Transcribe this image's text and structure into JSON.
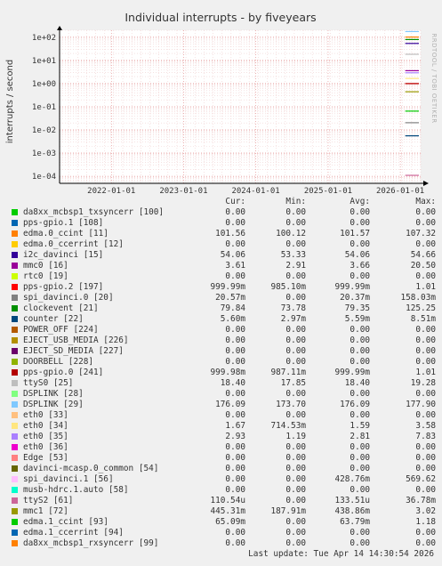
{
  "title": "Individual interrupts - by fiveyears",
  "ylabel": "interrupts / second",
  "side_text": "RRDTOOL / TOBI OETIKER",
  "columns": {
    "cur": "Cur:",
    "min": "Min:",
    "avg": "Avg:",
    "max": "Max:"
  },
  "footer": "Last update: Tue Apr 14 14:30:54 2026",
  "chart_data": {
    "type": "line",
    "title": "Individual interrupts - by fiveyears",
    "ylabel": "interrupts / second",
    "yscale": "log",
    "ylim": [
      5e-05,
      200
    ],
    "y_ticks": [
      {
        "v": 100,
        "label": "1e+02"
      },
      {
        "v": 10,
        "label": "1e+01"
      },
      {
        "v": 1,
        "label": "1e+00"
      },
      {
        "v": 0.1,
        "label": "1e-01"
      },
      {
        "v": 0.01,
        "label": "1e-02"
      },
      {
        "v": 0.001,
        "label": "1e-03"
      },
      {
        "v": 0.0001,
        "label": "1e-04"
      }
    ],
    "x_ticks": [
      "2022-01-01",
      "2023-01-01",
      "2024-01-01",
      "2025-01-01",
      "2026-01-01"
    ],
    "xlim": [
      "2021-04-14",
      "2026-04-14"
    ],
    "grid": true,
    "data_start": "2026-01-26",
    "series": [
      {
        "name": "da8xx_mcbsp1_txsyncerr [100]",
        "color": "#00cc00",
        "cur": "0.00",
        "min": "0.00",
        "avg": "0.00",
        "max": "0.00"
      },
      {
        "name": "pps-gpio.1 [108]",
        "color": "#0066b3",
        "cur": "0.00",
        "min": "0.00",
        "avg": "0.00",
        "max": "0.00"
      },
      {
        "name": "edma.0_ccint [11]",
        "color": "#ff8000",
        "cur": "101.56",
        "min": "100.12",
        "avg": "101.57",
        "max": "107.32"
      },
      {
        "name": "edma.0_ccerrint [12]",
        "color": "#ffcc00",
        "cur": "0.00",
        "min": "0.00",
        "avg": "0.00",
        "max": "0.00"
      },
      {
        "name": "i2c_davinci [15]",
        "color": "#330099",
        "cur": "54.06",
        "min": "53.33",
        "avg": "54.06",
        "max": "54.66"
      },
      {
        "name": "mmc0 [16]",
        "color": "#990099",
        "cur": "3.61",
        "min": "2.91",
        "avg": "3.66",
        "max": "20.50"
      },
      {
        "name": "rtc0 [19]",
        "color": "#ccff00",
        "cur": "0.00",
        "min": "0.00",
        "avg": "0.00",
        "max": "0.00"
      },
      {
        "name": "pps-gpio.2 [197]",
        "color": "#ff0000",
        "cur": "999.99m",
        "min": "985.10m",
        "avg": "999.99m",
        "max": "1.01"
      },
      {
        "name": "spi_davinci.0 [20]",
        "color": "#808080",
        "cur": "20.57m",
        "min": "0.00",
        "avg": "20.37m",
        "max": "158.03m"
      },
      {
        "name": "clockevent [21]",
        "color": "#008f00",
        "cur": "79.84",
        "min": "73.78",
        "avg": "79.35",
        "max": "125.25"
      },
      {
        "name": "counter [22]",
        "color": "#00487d",
        "cur": "5.60m",
        "min": "2.97m",
        "avg": "5.59m",
        "max": "8.51m"
      },
      {
        "name": "POWER_OFF [224]",
        "color": "#b35a00",
        "cur": "0.00",
        "min": "0.00",
        "avg": "0.00",
        "max": "0.00"
      },
      {
        "name": "EJECT_USB_MEDIA [226]",
        "color": "#b38f00",
        "cur": "0.00",
        "min": "0.00",
        "avg": "0.00",
        "max": "0.00"
      },
      {
        "name": "EJECT_SD_MEDIA [227]",
        "color": "#6b006b",
        "cur": "0.00",
        "min": "0.00",
        "avg": "0.00",
        "max": "0.00"
      },
      {
        "name": "DOORBELL [228]",
        "color": "#8fb300",
        "cur": "0.00",
        "min": "0.00",
        "avg": "0.00",
        "max": "0.00"
      },
      {
        "name": "pps-gpio.0 [241]",
        "color": "#b30000",
        "cur": "999.98m",
        "min": "987.11m",
        "avg": "999.99m",
        "max": "1.01"
      },
      {
        "name": "ttyS0 [25]",
        "color": "#bebebe",
        "cur": "18.40",
        "min": "17.85",
        "avg": "18.40",
        "max": "19.28"
      },
      {
        "name": "DSPLINK [28]",
        "color": "#80ff80",
        "cur": "0.00",
        "min": "0.00",
        "avg": "0.00",
        "max": "0.00"
      },
      {
        "name": "DSPLINK [29]",
        "color": "#80c9ff",
        "cur": "176.09",
        "min": "173.70",
        "avg": "176.09",
        "max": "177.90"
      },
      {
        "name": "eth0 [33]",
        "color": "#ffc080",
        "cur": "0.00",
        "min": "0.00",
        "avg": "0.00",
        "max": "0.00"
      },
      {
        "name": "eth0 [34]",
        "color": "#ffe680",
        "cur": "1.67",
        "min": "714.53m",
        "avg": "1.59",
        "max": "3.58"
      },
      {
        "name": "eth0 [35]",
        "color": "#aa80ff",
        "cur": "2.93",
        "min": "1.19",
        "avg": "2.81",
        "max": "7.83"
      },
      {
        "name": "eth0 [36]",
        "color": "#ee00cc",
        "cur": "0.00",
        "min": "0.00",
        "avg": "0.00",
        "max": "0.00"
      },
      {
        "name": "Edge [53]",
        "color": "#ff8080",
        "cur": "0.00",
        "min": "0.00",
        "avg": "0.00",
        "max": "0.00"
      },
      {
        "name": "davinci-mcasp.0_common [54]",
        "color": "#666600",
        "cur": "0.00",
        "min": "0.00",
        "avg": "0.00",
        "max": "0.00"
      },
      {
        "name": "spi_davinci.1 [56]",
        "color": "#ffbfff",
        "cur": "0.00",
        "min": "0.00",
        "avg": "428.76m",
        "max": "569.62"
      },
      {
        "name": "musb-hdrc.1.auto [58]",
        "color": "#00ffcc",
        "cur": "0.00",
        "min": "0.00",
        "avg": "0.00",
        "max": "0.00"
      },
      {
        "name": "ttyS2 [61]",
        "color": "#cc6699",
        "cur": "110.54u",
        "min": "0.00",
        "avg": "133.51u",
        "max": "36.78m"
      },
      {
        "name": "mmc1 [72]",
        "color": "#999900",
        "cur": "445.31m",
        "min": "187.91m",
        "avg": "438.86m",
        "max": "3.02"
      },
      {
        "name": "edma.1_ccint [93]",
        "color": "#00cc00",
        "cur": "65.09m",
        "min": "0.00",
        "avg": "63.79m",
        "max": "1.18"
      },
      {
        "name": "edma.1_ccerrint [94]",
        "color": "#0066b3",
        "cur": "0.00",
        "min": "0.00",
        "avg": "0.00",
        "max": "0.00"
      },
      {
        "name": "da8xx_mcbsp1_rxsyncerr [99]",
        "color": "#ff8000",
        "cur": "0.00",
        "min": "0.00",
        "avg": "0.00",
        "max": "0.00"
      }
    ]
  }
}
